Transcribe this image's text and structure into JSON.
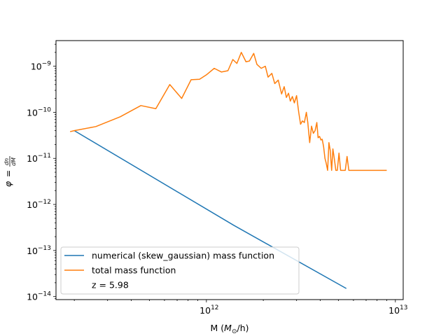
{
  "chart_data": {
    "type": "line",
    "xscale": "log",
    "yscale": "log",
    "xlim": [
      160000000000.0,
      11000000000000.0
    ],
    "ylim": [
      8.6e-15,
      3.6e-09
    ],
    "xlabel_main": "M (",
    "xlabel_math": "M",
    "xlabel_sub": "⊙",
    "xlabel_tail": "/h)",
    "ylabel_parts": [
      "φ",
      " = ",
      "dn",
      "dM"
    ],
    "x_ticks": [
      {
        "value": 1000000000000.0,
        "base": "10",
        "exp": "12"
      },
      {
        "value": 10000000000000.0,
        "base": "10",
        "exp": "13"
      }
    ],
    "y_ticks": [
      {
        "value": 1e-14,
        "base": "10",
        "exp": "−14"
      },
      {
        "value": 1e-13,
        "base": "10",
        "exp": "−13"
      },
      {
        "value": 1e-12,
        "base": "10",
        "exp": "−12"
      },
      {
        "value": 1e-11,
        "base": "10",
        "exp": "−11"
      },
      {
        "value": 1e-10,
        "base": "10",
        "exp": "−10"
      },
      {
        "value": 1e-09,
        "base": "10",
        "exp": "−9"
      }
    ],
    "series": [
      {
        "name": "numerical (skew_gaussian) mass function",
        "color": "#1f77b4",
        "x": [
          200000000000.0,
          1400000000000.0,
          5500000000000.0
        ],
        "y": [
          4e-11,
          3.5e-13,
          1.5e-14
        ]
      },
      {
        "name": "total mass function",
        "color": "#ff7f0e",
        "x": [
          190000000000.0,
          200000000000.0,
          260000000000.0,
          350000000000.0,
          450000000000.0,
          540000000000.0,
          640000000000.0,
          740000000000.0,
          830000000000.0,
          920000000000.0,
          1000000000000.0,
          1100000000000.0,
          1200000000000.0,
          1300000000000.0,
          1380000000000.0,
          1450000000000.0,
          1530000000000.0,
          1620000000000.0,
          1690000000000.0,
          1780000000000.0,
          1850000000000.0,
          1950000000000.0,
          2050000000000.0,
          2120000000000.0,
          2220000000000.0,
          2300000000000.0,
          2400000000000.0,
          2500000000000.0,
          2580000000000.0,
          2650000000000.0,
          2720000000000.0,
          2780000000000.0,
          2850000000000.0,
          2920000000000.0,
          3000000000000.0,
          3080000000000.0,
          3150000000000.0,
          3220000000000.0,
          3300000000000.0,
          3380000000000.0,
          3440000000000.0,
          3520000000000.0,
          3600000000000.0,
          3680000000000.0,
          3760000000000.0,
          3840000000000.0,
          3900000000000.0,
          3970000000000.0,
          4040000000000.0,
          4100000000000.0,
          4170000000000.0,
          4240000000000.0,
          4300000000000.0,
          4380000000000.0,
          4450000000000.0,
          4520000000000.0,
          4600000000000.0,
          4670000000000.0,
          4750000000000.0,
          4840000000000.0,
          4930000000000.0,
          5030000000000.0,
          5130000000000.0,
          5230000000000.0,
          5330000000000.0,
          5430000000000.0,
          5550000000000.0,
          5670000000000.0,
          5800000000000.0,
          5950000000000.0,
          6080000000000.0,
          9000000000000.0
        ],
        "y": [
          3.8e-11,
          4e-11,
          4.9e-11,
          8e-11,
          1.4e-10,
          1.2e-10,
          4e-10,
          2e-10,
          5.1e-10,
          5.2e-10,
          6.5e-10,
          9e-10,
          7.5e-10,
          8e-10,
          1.4e-09,
          1.15e-09,
          2e-09,
          1.25e-09,
          1.3e-09,
          1.9e-09,
          1.1e-09,
          9e-10,
          1e-09,
          5.8e-10,
          7e-10,
          4.2e-10,
          5e-10,
          2.5e-10,
          3.6e-10,
          2.1e-10,
          2.6e-10,
          1.75e-10,
          2.2e-10,
          1.6e-10,
          2.3e-10,
          1e-10,
          5.5e-11,
          6.5e-11,
          6e-11,
          1e-10,
          6e-11,
          2.2e-11,
          5e-11,
          3.5e-11,
          4e-11,
          6e-11,
          2.8e-11,
          3e-11,
          2.5e-11,
          2.6e-11,
          1.8e-11,
          1e-11,
          8e-12,
          5.5e-12,
          2.2e-11,
          1.5e-11,
          5.5e-12,
          1.6e-11,
          1e-11,
          5.5e-12,
          5.5e-12,
          1.3e-11,
          5.5e-12,
          5.5e-12,
          5.5e-12,
          5.5e-12,
          1.1e-11,
          5.5e-12,
          5.5e-12,
          5.5e-12,
          5.5e-12,
          5.5e-12
        ]
      }
    ],
    "legend": {
      "placement": "lower-left",
      "entries": [
        "numerical (skew_gaussian) mass function",
        "total mass function"
      ],
      "note": "z = 5.98"
    },
    "grid": false
  }
}
